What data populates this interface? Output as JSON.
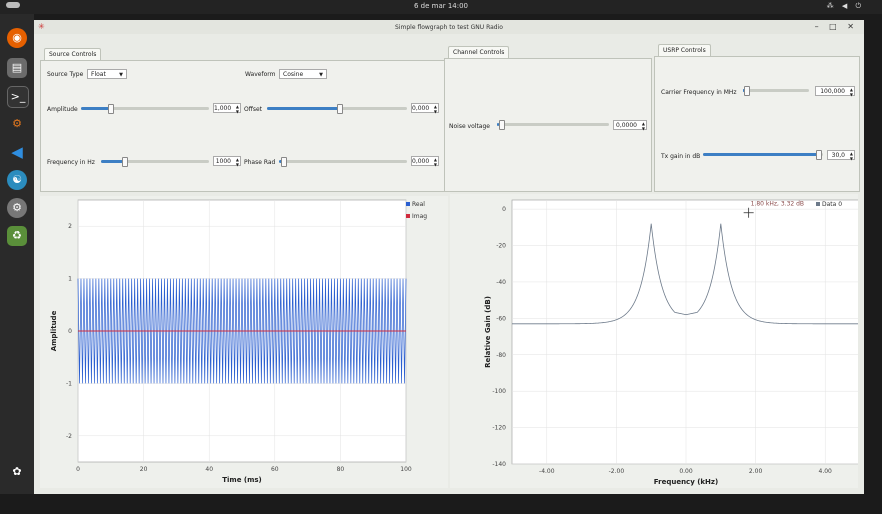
{
  "topbar": {
    "clock": "6 de mar  14:00",
    "tray": "⁂ ◀ ⏻"
  },
  "window": {
    "title": "Simple flowgraph to test GNU Radio",
    "controls": "–  □  ✕"
  },
  "source_controls": {
    "tab": "Source Controls",
    "source_type_label": "Source Type",
    "source_type_value": "Float",
    "waveform_label": "Waveform",
    "waveform_value": "Cosine",
    "amplitude_label": "Amplitude",
    "amplitude_value": "1,000",
    "amplitude_level": 0.22,
    "offset_label": "Offset",
    "offset_value": "0,000",
    "offset_level": 0.52,
    "frequency_label": "Frequency in Hz",
    "frequency_value": "1000",
    "frequency_level": 0.2,
    "phase_label": "Phase Rad",
    "phase_value": "0,000",
    "phase_level": 0.02
  },
  "channel_controls": {
    "tab": "Channel Controls",
    "noise_label": "Noise voltage",
    "noise_value": "0,0000",
    "noise_level": 0.02
  },
  "usrp_controls": {
    "tab": "USRP Controls",
    "carrier_label": "Carrier Frequency in MHz",
    "carrier_value": "100,000",
    "carrier_level": 0.02,
    "txgain_label": "Tx gain in dB",
    "txgain_value": "30,0",
    "txgain_level": 0.98
  },
  "dock_icons": [
    "show-apps-icon",
    "firefox-icon",
    "files-icon",
    "terminal-icon",
    "gnuradio-icon",
    "vscode-icon",
    "settings-icon",
    "trash-icon",
    "ubuntu-icon"
  ],
  "chart_data": [
    {
      "type": "line",
      "xlabel": "Time (ms)",
      "ylabel": "Amplitude",
      "x_ticks": [
        "0",
        "20",
        "40",
        "60",
        "80",
        "100"
      ],
      "y_ticks": [
        "2",
        "1",
        "0",
        "-1",
        "-2"
      ],
      "xlim": [
        0,
        100
      ],
      "ylim": [
        -2.5,
        2.5
      ],
      "grid": true,
      "legend": "top-right",
      "series": [
        {
          "name": "Real",
          "color": "#2b5fd0",
          "waveform": "cosine",
          "amplitude": 1.0,
          "frequency_hz": 1000
        },
        {
          "name": "Imag",
          "color": "#d02b3d",
          "waveform": "constant",
          "value": 0
        }
      ]
    },
    {
      "type": "line",
      "xlabel": "Frequency (kHz)",
      "ylabel": "Relative Gain (dB)",
      "x_ticks": [
        "-4.00",
        "-2.00",
        "0.00",
        "2.00",
        "4.00"
      ],
      "y_ticks": [
        "0",
        "-20",
        "-40",
        "-60",
        "-80",
        "-100",
        "-120",
        "-140"
      ],
      "xlim": [
        -5,
        5
      ],
      "ylim": [
        -140,
        5
      ],
      "grid": true,
      "legend": "top-right",
      "marker_readout": "1.80 kHz, 3.32 dB",
      "series": [
        {
          "name": "Data 0",
          "color": "#6d7a8a",
          "noise_floor_db": -63,
          "peaks": [
            {
              "x": -1.0,
              "y": -8
            },
            {
              "x": 1.0,
              "y": -8
            }
          ],
          "center_dip_db": -54
        }
      ]
    }
  ]
}
